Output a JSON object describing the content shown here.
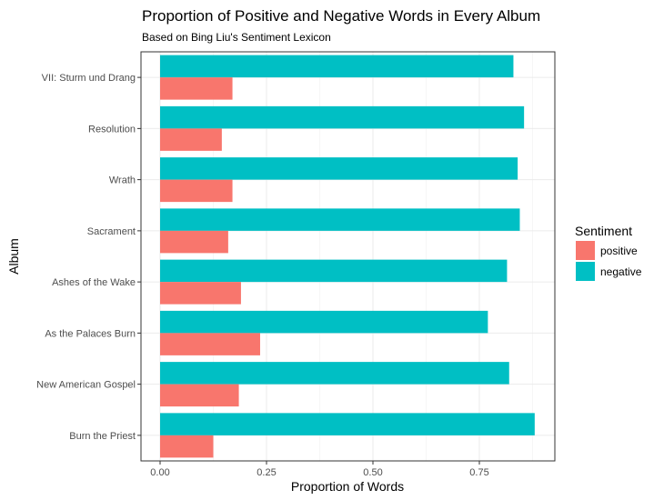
{
  "chart_data": {
    "type": "bar",
    "orientation": "horizontal",
    "title": "Proportion of Positive and Negative Words in Every Album",
    "subtitle": "Based on Bing Liu's Sentiment Lexicon",
    "xlabel": "Proportion of Words",
    "ylabel": "Album",
    "xlim": [
      0,
      0.88
    ],
    "x_ticks": [
      "0.00",
      "0.25",
      "0.50",
      "0.75"
    ],
    "x_tick_values": [
      0,
      0.25,
      0.5,
      0.75
    ],
    "grid": true,
    "legend": {
      "title": "Sentiment",
      "placement": "right"
    },
    "categories": [
      "VII: Sturm und Drang",
      "Resolution",
      "Wrath",
      "Sacrament",
      "Ashes of the Wake",
      "As the Palaces Burn",
      "New American Gospel",
      "Burn the Priest"
    ],
    "series": [
      {
        "name": "positive",
        "color": "#F8766D",
        "values": [
          0.17,
          0.145,
          0.17,
          0.16,
          0.19,
          0.235,
          0.185,
          0.125
        ]
      },
      {
        "name": "negative",
        "color": "#00BFC4",
        "values": [
          0.83,
          0.855,
          0.84,
          0.845,
          0.815,
          0.77,
          0.82,
          0.88
        ]
      }
    ]
  }
}
